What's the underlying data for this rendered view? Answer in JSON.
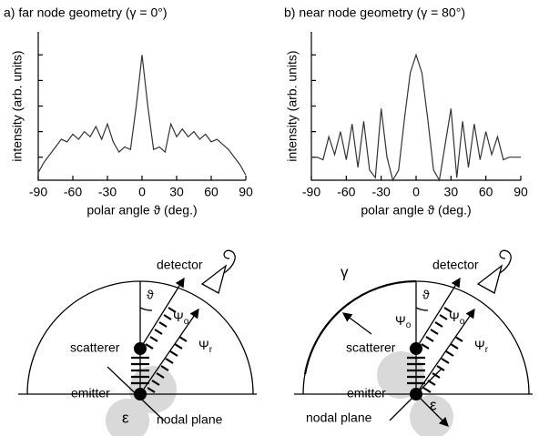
{
  "chart_data": [
    {
      "type": "line",
      "title": "a) far node geometry (γ = 0°)",
      "x_label": "polar angle ϑ (deg.)",
      "y_label": "intensity (arb. units)",
      "x": [
        -90,
        -85,
        -80,
        -75,
        -70,
        -65,
        -60,
        -55,
        -50,
        -45,
        -40,
        -35,
        -30,
        -25,
        -20,
        -15,
        -10,
        -5,
        0,
        5,
        10,
        15,
        20,
        25,
        30,
        35,
        40,
        45,
        50,
        55,
        60,
        65,
        70,
        75,
        80,
        85,
        90
      ],
      "series": [
        {
          "color": "#333333",
          "values": [
            0.4,
            0.8,
            1.1,
            1.4,
            1.7,
            1.6,
            1.9,
            1.7,
            2.0,
            1.8,
            2.2,
            1.7,
            2.3,
            1.6,
            1.2,
            1.4,
            1.3,
            3.0,
            5.0,
            3.0,
            1.3,
            1.4,
            1.2,
            2.3,
            1.8,
            2.1,
            1.8,
            2.0,
            1.7,
            1.9,
            1.6,
            1.7,
            1.5,
            1.3,
            1.0,
            0.7,
            0.3
          ]
        }
      ],
      "xlim": [
        -90,
        90
      ],
      "xticks": [
        -90,
        -60,
        -30,
        0,
        30,
        60,
        90
      ],
      "ylim": [
        0.1,
        5.9
      ],
      "yticks": [
        1,
        2,
        3,
        4,
        5
      ],
      "ytick_labels": false
    },
    {
      "type": "line",
      "title": "b) near node geometry (γ = 80°)",
      "x_label": "polar angle ϑ (deg.)",
      "y_label": "intensity (arb. units)",
      "x": [
        -90,
        -85,
        -80,
        -75,
        -70,
        -65,
        -60,
        -55,
        -50,
        -45,
        -40,
        -35,
        -30,
        -25,
        -20,
        -15,
        -10,
        -5,
        0,
        5,
        10,
        15,
        20,
        25,
        30,
        35,
        40,
        45,
        50,
        55,
        60,
        65,
        70,
        75,
        80,
        85,
        90
      ],
      "series": [
        {
          "color": "#333333",
          "values": [
            1.0,
            1.0,
            0.9,
            1.8,
            1.1,
            2.0,
            0.9,
            2.3,
            0.6,
            2.4,
            0.5,
            0.2,
            2.9,
            1.0,
            0.1,
            0.5,
            2.5,
            4.3,
            5.0,
            4.3,
            2.5,
            0.5,
            0.1,
            1.5,
            2.9,
            0.2,
            2.4,
            0.6,
            2.3,
            0.9,
            2.0,
            1.1,
            1.8,
            0.9,
            1.0,
            1.0,
            1.0
          ]
        }
      ],
      "xlim": [
        -90,
        90
      ],
      "xticks": [
        -90,
        -60,
        -30,
        0,
        30,
        60,
        90
      ],
      "ylim": [
        0.1,
        5.9
      ],
      "yticks": [
        1,
        2,
        3,
        4,
        5
      ],
      "ytick_labels": false
    }
  ],
  "diagrams": [
    {
      "detector": "detector",
      "theta": "ϑ",
      "psi_o": {
        "symbol": "Ψ",
        "subscript": "o"
      },
      "psi_r": {
        "symbol": "Ψ",
        "subscript": "r"
      },
      "scatterer": "scatterer",
      "emitter": "emitter",
      "epsilon": "ε",
      "nodal_plane": "nodal plane"
    },
    {
      "gamma": "γ",
      "detector": "detector",
      "theta": "ϑ",
      "psi_o_left": {
        "symbol": "Ψ",
        "subscript": "o"
      },
      "psi_o": {
        "symbol": "Ψ",
        "subscript": "o"
      },
      "psi_r": {
        "symbol": "Ψ",
        "subscript": "r"
      },
      "scatterer": "scatterer",
      "emitter": "emitter",
      "epsilon": "ε",
      "nodal_plane": "nodal plane"
    }
  ]
}
